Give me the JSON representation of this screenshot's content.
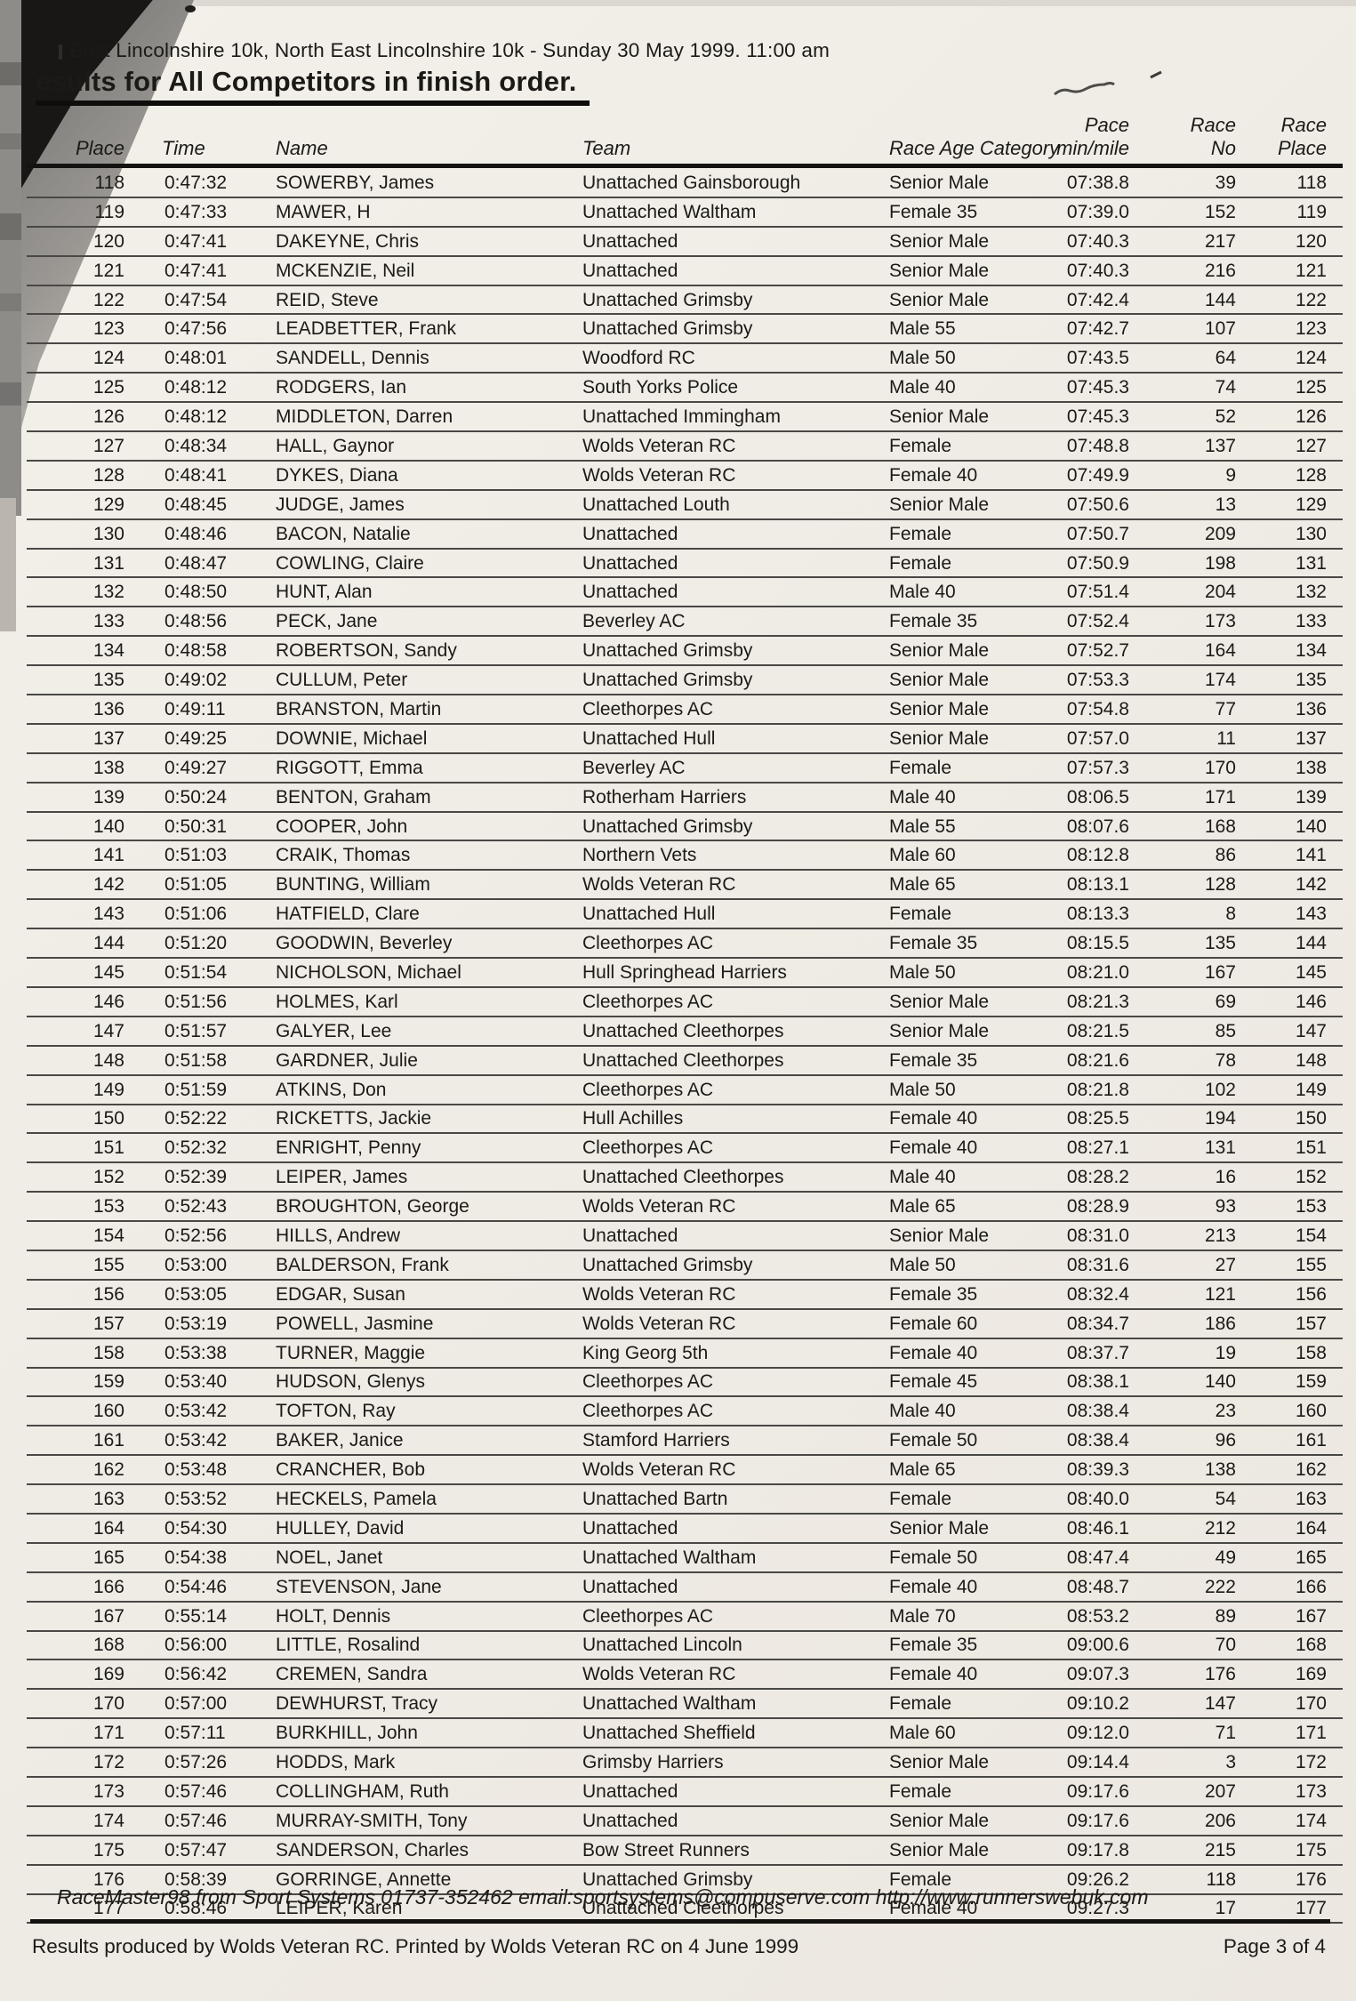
{
  "header": {
    "event_line": "East Lincolnshire 10k, North East Lincolnshire 10k - Sunday 30 May 1999. 11:00 am",
    "title": "esults for All Competitors in finish order."
  },
  "table": {
    "headers": {
      "place": "Place",
      "time": "Time",
      "name": "Name",
      "team": "Team",
      "category": "Race Age Category",
      "pace_top": "Pace",
      "pace_bottom": "min/mile",
      "race_no_top": "Race",
      "race_no_bottom": "No",
      "race_place_top": "Race",
      "race_place_bottom": "Place"
    },
    "rows": [
      [
        "118",
        "0:47:32",
        "SOWERBY, James",
        "Unattached Gainsborough",
        "Senior Male",
        "07:38.8",
        "39",
        "118"
      ],
      [
        "119",
        "0:47:33",
        "MAWER, H",
        "Unattached Waltham",
        "Female 35",
        "07:39.0",
        "152",
        "119"
      ],
      [
        "120",
        "0:47:41",
        "DAKEYNE, Chris",
        "Unattached",
        "Senior Male",
        "07:40.3",
        "217",
        "120"
      ],
      [
        "121",
        "0:47:41",
        "MCKENZIE, Neil",
        "Unattached",
        "Senior Male",
        "07:40.3",
        "216",
        "121"
      ],
      [
        "122",
        "0:47:54",
        "REID, Steve",
        "Unattached Grimsby",
        "Senior Male",
        "07:42.4",
        "144",
        "122"
      ],
      [
        "123",
        "0:47:56",
        "LEADBETTER, Frank",
        "Unattached Grimsby",
        "Male 55",
        "07:42.7",
        "107",
        "123"
      ],
      [
        "124",
        "0:48:01",
        "SANDELL, Dennis",
        "Woodford RC",
        "Male 50",
        "07:43.5",
        "64",
        "124"
      ],
      [
        "125",
        "0:48:12",
        "RODGERS, Ian",
        "South Yorks Police",
        "Male 40",
        "07:45.3",
        "74",
        "125"
      ],
      [
        "126",
        "0:48:12",
        "MIDDLETON, Darren",
        "Unattached Immingham",
        "Senior Male",
        "07:45.3",
        "52",
        "126"
      ],
      [
        "127",
        "0:48:34",
        "HALL, Gaynor",
        "Wolds Veteran RC",
        "Female",
        "07:48.8",
        "137",
        "127"
      ],
      [
        "128",
        "0:48:41",
        "DYKES, Diana",
        "Wolds Veteran RC",
        "Female 40",
        "07:49.9",
        "9",
        "128"
      ],
      [
        "129",
        "0:48:45",
        "JUDGE, James",
        "Unattached Louth",
        "Senior Male",
        "07:50.6",
        "13",
        "129"
      ],
      [
        "130",
        "0:48:46",
        "BACON, Natalie",
        "Unattached",
        "Female",
        "07:50.7",
        "209",
        "130"
      ],
      [
        "131",
        "0:48:47",
        "COWLING, Claire",
        "Unattached",
        "Female",
        "07:50.9",
        "198",
        "131"
      ],
      [
        "132",
        "0:48:50",
        "HUNT, Alan",
        "Unattached",
        "Male 40",
        "07:51.4",
        "204",
        "132"
      ],
      [
        "133",
        "0:48:56",
        "PECK, Jane",
        "Beverley AC",
        "Female 35",
        "07:52.4",
        "173",
        "133"
      ],
      [
        "134",
        "0:48:58",
        "ROBERTSON, Sandy",
        "Unattached Grimsby",
        "Senior Male",
        "07:52.7",
        "164",
        "134"
      ],
      [
        "135",
        "0:49:02",
        "CULLUM, Peter",
        "Unattached Grimsby",
        "Senior Male",
        "07:53.3",
        "174",
        "135"
      ],
      [
        "136",
        "0:49:11",
        "BRANSTON, Martin",
        "Cleethorpes AC",
        "Senior Male",
        "07:54.8",
        "77",
        "136"
      ],
      [
        "137",
        "0:49:25",
        "DOWNIE, Michael",
        "Unattached Hull",
        "Senior Male",
        "07:57.0",
        "11",
        "137"
      ],
      [
        "138",
        "0:49:27",
        "RIGGOTT, Emma",
        "Beverley AC",
        "Female",
        "07:57.3",
        "170",
        "138"
      ],
      [
        "139",
        "0:50:24",
        "BENTON, Graham",
        "Rotherham Harriers",
        "Male 40",
        "08:06.5",
        "171",
        "139"
      ],
      [
        "140",
        "0:50:31",
        "COOPER, John",
        "Unattached Grimsby",
        "Male 55",
        "08:07.6",
        "168",
        "140"
      ],
      [
        "141",
        "0:51:03",
        "CRAIK, Thomas",
        "Northern Vets",
        "Male 60",
        "08:12.8",
        "86",
        "141"
      ],
      [
        "142",
        "0:51:05",
        "BUNTING, William",
        "Wolds Veteran RC",
        "Male 65",
        "08:13.1",
        "128",
        "142"
      ],
      [
        "143",
        "0:51:06",
        "HATFIELD, Clare",
        "Unattached Hull",
        "Female",
        "08:13.3",
        "8",
        "143"
      ],
      [
        "144",
        "0:51:20",
        "GOODWIN, Beverley",
        "Cleethorpes AC",
        "Female 35",
        "08:15.5",
        "135",
        "144"
      ],
      [
        "145",
        "0:51:54",
        "NICHOLSON, Michael",
        "Hull Springhead Harriers",
        "Male 50",
        "08:21.0",
        "167",
        "145"
      ],
      [
        "146",
        "0:51:56",
        "HOLMES, Karl",
        "Cleethorpes AC",
        "Senior Male",
        "08:21.3",
        "69",
        "146"
      ],
      [
        "147",
        "0:51:57",
        "GALYER, Lee",
        "Unattached Cleethorpes",
        "Senior Male",
        "08:21.5",
        "85",
        "147"
      ],
      [
        "148",
        "0:51:58",
        "GARDNER, Julie",
        "Unattached Cleethorpes",
        "Female 35",
        "08:21.6",
        "78",
        "148"
      ],
      [
        "149",
        "0:51:59",
        "ATKINS, Don",
        "Cleethorpes AC",
        "Male 50",
        "08:21.8",
        "102",
        "149"
      ],
      [
        "150",
        "0:52:22",
        "RICKETTS, Jackie",
        "Hull Achilles",
        "Female 40",
        "08:25.5",
        "194",
        "150"
      ],
      [
        "151",
        "0:52:32",
        "ENRIGHT, Penny",
        "Cleethorpes AC",
        "Female 40",
        "08:27.1",
        "131",
        "151"
      ],
      [
        "152",
        "0:52:39",
        "LEIPER, James",
        "Unattached Cleethorpes",
        "Male 40",
        "08:28.2",
        "16",
        "152"
      ],
      [
        "153",
        "0:52:43",
        "BROUGHTON, George",
        "Wolds Veteran RC",
        "Male 65",
        "08:28.9",
        "93",
        "153"
      ],
      [
        "154",
        "0:52:56",
        "HILLS, Andrew",
        "Unattached",
        "Senior Male",
        "08:31.0",
        "213",
        "154"
      ],
      [
        "155",
        "0:53:00",
        "BALDERSON, Frank",
        "Unattached Grimsby",
        "Male 50",
        "08:31.6",
        "27",
        "155"
      ],
      [
        "156",
        "0:53:05",
        "EDGAR, Susan",
        "Wolds Veteran RC",
        "Female 35",
        "08:32.4",
        "121",
        "156"
      ],
      [
        "157",
        "0:53:19",
        "POWELL, Jasmine",
        "Wolds Veteran RC",
        "Female 60",
        "08:34.7",
        "186",
        "157"
      ],
      [
        "158",
        "0:53:38",
        "TURNER, Maggie",
        "King Georg 5th",
        "Female 40",
        "08:37.7",
        "19",
        "158"
      ],
      [
        "159",
        "0:53:40",
        "HUDSON, Glenys",
        "Cleethorpes AC",
        "Female 45",
        "08:38.1",
        "140",
        "159"
      ],
      [
        "160",
        "0:53:42",
        "TOFTON, Ray",
        "Cleethorpes AC",
        "Male 40",
        "08:38.4",
        "23",
        "160"
      ],
      [
        "161",
        "0:53:42",
        "BAKER, Janice",
        "Stamford Harriers",
        "Female 50",
        "08:38.4",
        "96",
        "161"
      ],
      [
        "162",
        "0:53:48",
        "CRANCHER, Bob",
        "Wolds Veteran RC",
        "Male 65",
        "08:39.3",
        "138",
        "162"
      ],
      [
        "163",
        "0:53:52",
        "HECKELS, Pamela",
        "Unattached Bartn",
        "Female",
        "08:40.0",
        "54",
        "163"
      ],
      [
        "164",
        "0:54:30",
        "HULLEY, David",
        "Unattached",
        "Senior Male",
        "08:46.1",
        "212",
        "164"
      ],
      [
        "165",
        "0:54:38",
        "NOEL, Janet",
        "Unattached Waltham",
        "Female 50",
        "08:47.4",
        "49",
        "165"
      ],
      [
        "166",
        "0:54:46",
        "STEVENSON, Jane",
        "Unattached",
        "Female 40",
        "08:48.7",
        "222",
        "166"
      ],
      [
        "167",
        "0:55:14",
        "HOLT, Dennis",
        "Cleethorpes AC",
        "Male 70",
        "08:53.2",
        "89",
        "167"
      ],
      [
        "168",
        "0:56:00",
        "LITTLE, Rosalind",
        "Unattached Lincoln",
        "Female 35",
        "09:00.6",
        "70",
        "168"
      ],
      [
        "169",
        "0:56:42",
        "CREMEN, Sandra",
        "Wolds Veteran RC",
        "Female 40",
        "09:07.3",
        "176",
        "169"
      ],
      [
        "170",
        "0:57:00",
        "DEWHURST, Tracy",
        "Unattached Waltham",
        "Female",
        "09:10.2",
        "147",
        "170"
      ],
      [
        "171",
        "0:57:11",
        "BURKHILL, John",
        "Unattached Sheffield",
        "Male 60",
        "09:12.0",
        "71",
        "171"
      ],
      [
        "172",
        "0:57:26",
        "HODDS, Mark",
        "Grimsby Harriers",
        "Senior Male",
        "09:14.4",
        "3",
        "172"
      ],
      [
        "173",
        "0:57:46",
        "COLLINGHAM, Ruth",
        "Unattached",
        "Female",
        "09:17.6",
        "207",
        "173"
      ],
      [
        "174",
        "0:57:46",
        "MURRAY-SMITH, Tony",
        "Unattached",
        "Senior Male",
        "09:17.6",
        "206",
        "174"
      ],
      [
        "175",
        "0:57:47",
        "SANDERSON, Charles",
        "Bow Street Runners",
        "Senior Male",
        "09:17.8",
        "215",
        "175"
      ],
      [
        "176",
        "0:58:39",
        "GORRINGE, Annette",
        "Unattached Grimsby",
        "Female",
        "09:26.2",
        "118",
        "176"
      ],
      [
        "177",
        "0:58:46",
        "LEIPER, Karen",
        "Unattached Cleethorpes",
        "Female 40",
        "09:27.3",
        "17",
        "177"
      ]
    ]
  },
  "footer": {
    "credit": "RaceMaster98 from Sport Systems 01737-352462 email:sportsystems@compuserve.com http://www.runnerswebuk.com",
    "produced": "Results produced by Wolds Veteran RC. Printed by Wolds Veteran RC on 4 June 1999",
    "page": "Page 3 of 4"
  }
}
